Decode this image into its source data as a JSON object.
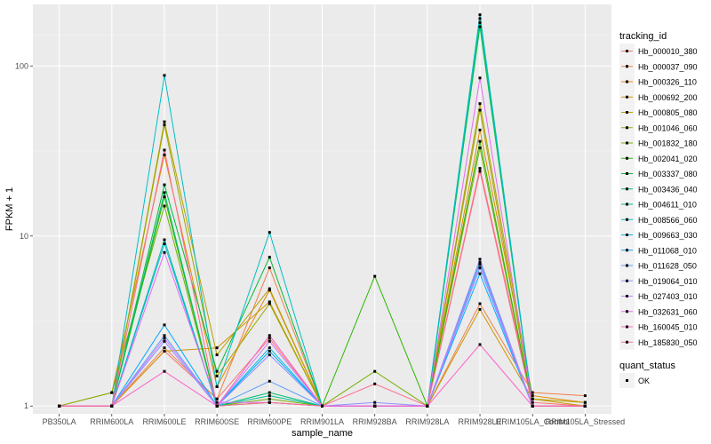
{
  "chart_data": {
    "type": "line",
    "title": "",
    "xlabel": "sample_name",
    "ylabel": "FPKM + 1",
    "y_scale": "log10",
    "ylim": [
      0.9,
      230
    ],
    "y_ticks": [
      1,
      10,
      100
    ],
    "y_tick_labels": [
      "1",
      "10",
      "100"
    ],
    "grid": true,
    "legend_position": "right",
    "categories": [
      "PB350LA",
      "RRIM600LA",
      "RRIM600LE",
      "RRIM600SE",
      "RRIM600PE",
      "RRIM901LA",
      "RRIM928BA",
      "RRIM928LA",
      "RRIM928LE",
      "RRIM105LA_Control",
      "RRIM105LA_Stressed"
    ],
    "category_labels": [
      "PB350LA",
      "RRIM600LA",
      "RRIM600LE",
      "RRIM600SE",
      "RRIM600PE",
      "RRIM901LA",
      "RRIM928BA",
      "RRIM928LA",
      "RRIM928LE",
      "RRIM105LA_Control",
      "RRIM105LA_Stressed"
    ],
    "legend_title": "tracking_id",
    "series": [
      {
        "name": "Hb_000010_380",
        "color": "#F8766D",
        "values": [
          1.0,
          1.0,
          2.1,
          1.1,
          2.5,
          1.0,
          1.0,
          1.0,
          25,
          1.05,
          1.0
        ]
      },
      {
        "name": "Hb_000037_090",
        "color": "#EF7F49",
        "values": [
          1.0,
          1.0,
          2.2,
          1.1,
          6.5,
          1.0,
          1.0,
          1.0,
          4.0,
          1.2,
          1.15
        ]
      },
      {
        "name": "Hb_000326_110",
        "color": "#E18A00",
        "values": [
          1.0,
          1.2,
          30,
          1.3,
          4.8,
          1.0,
          1.0,
          1.0,
          42,
          1.15,
          1.05
        ]
      },
      {
        "name": "Hb_000692_200",
        "color": "#CF9400",
        "values": [
          1.0,
          1.0,
          2.1,
          2.2,
          4.1,
          1.0,
          1.0,
          1.0,
          3.7,
          1.1,
          1.0
        ]
      },
      {
        "name": "Hb_000805_080",
        "color": "#B79F00",
        "values": [
          1.0,
          1.0,
          47,
          2.0,
          4.9,
          1.0,
          1.0,
          1.0,
          60,
          1.1,
          1.05
        ]
      },
      {
        "name": "Hb_001046_060",
        "color": "#9BA800",
        "values": [
          1.0,
          1.0,
          45,
          1.5,
          4.0,
          1.0,
          1.0,
          1.0,
          55,
          1.0,
          1.0
        ]
      },
      {
        "name": "Hb_001832_180",
        "color": "#74B000",
        "values": [
          1.0,
          1.2,
          15,
          1.0,
          1.1,
          1.0,
          1.6,
          1.0,
          33,
          1.0,
          1.0
        ]
      },
      {
        "name": "Hb_002041_020",
        "color": "#2CB600",
        "values": [
          1.0,
          1.0,
          17,
          1.0,
          1.05,
          1.0,
          5.8,
          1.0,
          36,
          1.0,
          1.0
        ]
      },
      {
        "name": "Hb_003337_080",
        "color": "#00BA38",
        "values": [
          1.0,
          1.0,
          20,
          1.6,
          7.5,
          1.0,
          1.0,
          1.0,
          170,
          1.0,
          1.0
        ]
      },
      {
        "name": "Hb_003436_040",
        "color": "#00BE70",
        "values": [
          1.0,
          1.0,
          18,
          1.0,
          1.2,
          1.0,
          1.0,
          1.0,
          180,
          1.0,
          1.0
        ]
      },
      {
        "name": "Hb_004611_010",
        "color": "#00C097",
        "values": [
          1.0,
          1.0,
          9.5,
          1.0,
          1.15,
          1.0,
          1.0,
          1.0,
          190,
          1.0,
          1.0
        ]
      },
      {
        "name": "Hb_008566_060",
        "color": "#00BFC4",
        "values": [
          1.0,
          1.0,
          88,
          1.3,
          10.5,
          1.0,
          1.0,
          1.0,
          200,
          1.0,
          1.0
        ]
      },
      {
        "name": "Hb_009663_030",
        "color": "#00B8E7",
        "values": [
          1.0,
          1.0,
          9.0,
          1.0,
          2.2,
          1.0,
          1.0,
          1.0,
          7.0,
          1.0,
          1.0
        ]
      },
      {
        "name": "Hb_011068_010",
        "color": "#00A9FF",
        "values": [
          1.0,
          1.0,
          3.0,
          1.0,
          2.1,
          1.0,
          1.0,
          1.0,
          6.0,
          1.0,
          1.0
        ]
      },
      {
        "name": "Hb_011628_050",
        "color": "#619CFF",
        "values": [
          1.0,
          1.0,
          2.6,
          1.0,
          1.4,
          1.0,
          1.0,
          1.0,
          6.5,
          1.0,
          1.0
        ]
      },
      {
        "name": "Hb_019064_010",
        "color": "#8F91FF",
        "values": [
          1.0,
          1.0,
          2.4,
          1.0,
          2.0,
          1.0,
          1.05,
          1.0,
          7.3,
          1.0,
          1.0
        ]
      },
      {
        "name": "Hb_027403_010",
        "color": "#C77CFF",
        "values": [
          1.0,
          1.0,
          2.5,
          1.0,
          2.4,
          1.0,
          1.0,
          1.0,
          6.8,
          1.0,
          1.0
        ]
      },
      {
        "name": "Hb_032631_060",
        "color": "#E76BF3",
        "values": [
          1.0,
          1.0,
          8.0,
          1.05,
          1.05,
          1.0,
          1.0,
          1.0,
          85,
          1.0,
          1.0
        ]
      },
      {
        "name": "Hb_160045_010",
        "color": "#FF61C9",
        "values": [
          1.0,
          1.0,
          1.6,
          1.0,
          2.6,
          1.0,
          1.0,
          1.0,
          2.3,
          1.0,
          1.0
        ]
      },
      {
        "name": "Hb_185830_050",
        "color": "#FF6C91",
        "values": [
          1.0,
          1.0,
          32,
          1.0,
          1.05,
          1.0,
          1.35,
          1.0,
          24,
          1.0,
          1.0
        ]
      }
    ],
    "shape_legend": {
      "title": "quant_status",
      "items": [
        {
          "label": "OK",
          "symbol": "square"
        }
      ]
    }
  }
}
